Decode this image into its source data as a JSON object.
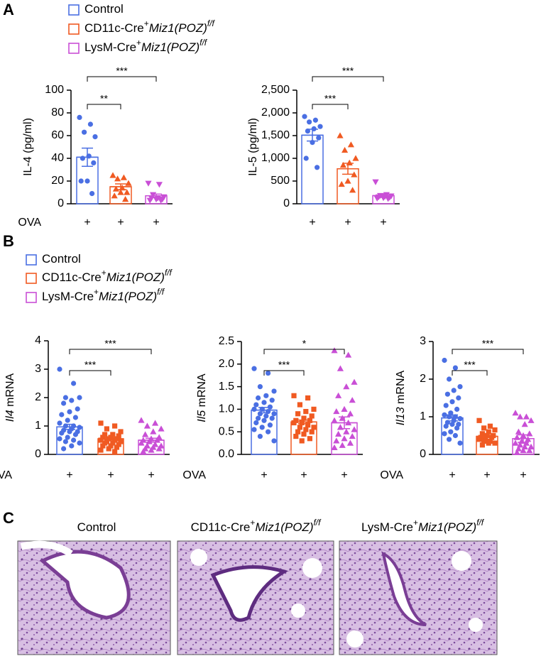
{
  "panels": {
    "A": "A",
    "B": "B",
    "C": "C"
  },
  "legends": {
    "A": [
      {
        "name": "Control",
        "color": "#4a6fe3"
      },
      {
        "name": "CD11c-Cre",
        "sup": "+",
        "italic": "Miz1(POZ)",
        "sup2": "f/f",
        "color": "#f05a22"
      },
      {
        "name": "LysM-Cre",
        "sup": "+",
        "italic": "Miz1(POZ)",
        "sup2": "f/f",
        "color": "#c94fd6"
      }
    ],
    "B": [
      {
        "name": "Control",
        "color": "#4a6fe3"
      },
      {
        "name": "CD11c-Cre",
        "sup": "+",
        "italic": "Miz1(POZ)",
        "sup2": "f/f",
        "color": "#f05a22"
      },
      {
        "name": "LysM-Cre",
        "sup": "+",
        "italic": "Miz1(POZ)",
        "sup2": "f/f",
        "color": "#c94fd6"
      }
    ]
  },
  "images": [
    {
      "name": "Control"
    },
    {
      "name": "CD11c-Cre",
      "sup": "+",
      "italic": "Miz1(POZ)",
      "sup2": "f/f"
    },
    {
      "name": "LysM-Cre",
      "sup": "+",
      "italic": "Miz1(POZ)",
      "sup2": "f/f"
    }
  ],
  "chart_data": [
    {
      "type": "bar",
      "y_label": "IL-4 (pg/ml)",
      "x_row_label": "OVA",
      "categories": [
        "+",
        "+",
        "+"
      ],
      "values": [
        41,
        15,
        7
      ],
      "errors": [
        8,
        2.5,
        1.5
      ],
      "colors": [
        "#4a6fe3",
        "#f05a22",
        "#c94fd6"
      ],
      "markers": [
        "circle",
        "triangle",
        "triangle-down"
      ],
      "points": [
        [
          76,
          70,
          63,
          59,
          42,
          40,
          36,
          20,
          20,
          9
        ],
        [
          25,
          23,
          22,
          18,
          14,
          13,
          10,
          10,
          7,
          4
        ],
        [
          18,
          17,
          8,
          6,
          5,
          5,
          4,
          4,
          3,
          3
        ]
      ],
      "annotations": [
        {
          "text": "**"
        },
        {
          "text": "***"
        }
      ],
      "ylim": [
        0,
        100
      ],
      "yticks": [
        0,
        20,
        40,
        60,
        80,
        100
      ]
    },
    {
      "type": "bar",
      "y_label": "IL-5 (pg/ml)",
      "x_row_label": null,
      "categories": [
        "+",
        "+",
        "+"
      ],
      "values": [
        1510,
        770,
        180
      ],
      "errors": [
        130,
        120,
        40
      ],
      "colors": [
        "#4a6fe3",
        "#f05a22",
        "#c94fd6"
      ],
      "markers": [
        "circle",
        "triangle",
        "triangle-down"
      ],
      "points": [
        [
          1920,
          1840,
          1800,
          1700,
          1650,
          1600,
          1450,
          1350,
          1000,
          800
        ],
        [
          1500,
          1300,
          1180,
          1000,
          900,
          850,
          640,
          500,
          430,
          300
        ],
        [
          480,
          200,
          180,
          170,
          160,
          150,
          140,
          130,
          120,
          110
        ]
      ],
      "annotations": [
        {
          "text": "***"
        },
        {
          "text": "***"
        }
      ],
      "ylim": [
        0,
        2500
      ],
      "yticks": [
        0,
        500,
        {
          "value": 1000,
          "label": "1,000"
        },
        {
          "value": 1500,
          "label": "1,500"
        },
        {
          "value": 2000,
          "label": "2,000"
        },
        {
          "value": 2500,
          "label": "2,500"
        }
      ]
    },
    {
      "type": "bar",
      "y_label_italic": "Il4",
      "y_label": "mRNA",
      "x_row_label": "OVA",
      "categories": [
        "+",
        "+",
        "+"
      ],
      "values": [
        0.97,
        0.55,
        0.5
      ],
      "errors": [
        0.09,
        0.04,
        0.07
      ],
      "colors": [
        "#4a6fe3",
        "#f05a22",
        "#c94fd6"
      ],
      "markers": [
        "circle",
        "square",
        "triangle"
      ],
      "points": [
        [
          3.0,
          2.5,
          2.0,
          2.0,
          1.9,
          1.8,
          1.6,
          1.5,
          1.4,
          1.3,
          1.2,
          1.1,
          1.0,
          1.0,
          0.95,
          0.9,
          0.85,
          0.8,
          0.8,
          0.75,
          0.7,
          0.6,
          0.55,
          0.5,
          0.45,
          0.4,
          0.3,
          0.2
        ],
        [
          1.1,
          1.0,
          0.9,
          0.8,
          0.7,
          0.7,
          0.65,
          0.6,
          0.6,
          0.55,
          0.55,
          0.5,
          0.5,
          0.45,
          0.45,
          0.4,
          0.4,
          0.35,
          0.3,
          0.3,
          0.25,
          0.2,
          0.15,
          0.1
        ],
        [
          1.2,
          1.1,
          1.0,
          0.9,
          0.8,
          0.7,
          0.6,
          0.55,
          0.5,
          0.5,
          0.45,
          0.4,
          0.35,
          0.3,
          0.3,
          0.25,
          0.2,
          0.2,
          0.15,
          0.1
        ]
      ],
      "annotations": [
        {
          "text": "***"
        },
        {
          "text": "***"
        }
      ],
      "ylim": [
        0,
        4
      ],
      "yticks": [
        0,
        1,
        2,
        3,
        4
      ]
    },
    {
      "type": "bar",
      "y_label_italic": "Il5",
      "y_label": "mRNA",
      "x_row_label": "OVA",
      "categories": [
        "+",
        "+",
        "+"
      ],
      "values": [
        0.98,
        0.72,
        0.7
      ],
      "errors": [
        0.06,
        0.04,
        0.13
      ],
      "colors": [
        "#4a6fe3",
        "#f05a22",
        "#c94fd6"
      ],
      "markers": [
        "circle",
        "square",
        "triangle"
      ],
      "points": [
        [
          1.9,
          1.8,
          1.5,
          1.4,
          1.3,
          1.25,
          1.2,
          1.15,
          1.1,
          1.05,
          1.0,
          1.0,
          0.95,
          0.9,
          0.9,
          0.85,
          0.8,
          0.8,
          0.75,
          0.7,
          0.65,
          0.6,
          0.55,
          0.5,
          0.4,
          0.3
        ],
        [
          1.3,
          1.25,
          1.1,
          1.0,
          0.95,
          0.9,
          0.85,
          0.8,
          0.75,
          0.75,
          0.7,
          0.7,
          0.65,
          0.6,
          0.6,
          0.55,
          0.5,
          0.5,
          0.45,
          0.4,
          0.35,
          0.3
        ],
        [
          2.3,
          2.2,
          1.9,
          1.6,
          1.5,
          1.3,
          1.2,
          1.0,
          0.95,
          0.9,
          0.8,
          0.75,
          0.7,
          0.6,
          0.55,
          0.5,
          0.45,
          0.4,
          0.35,
          0.3,
          0.25,
          0.2,
          0.15
        ]
      ],
      "annotations": [
        {
          "text": "***"
        },
        {
          "text": "*"
        }
      ],
      "ylim": [
        0,
        2.5
      ],
      "yticks": [
        {
          "value": 0,
          "label": "0.0"
        },
        0.5,
        {
          "value": 1,
          "label": "1.0"
        },
        1.5,
        {
          "value": 2,
          "label": "2.0"
        },
        2.5
      ]
    },
    {
      "type": "bar",
      "y_label_italic": "Il13",
      "y_label": "mRNA",
      "x_row_label": "OVA",
      "categories": [
        "+",
        "+",
        "+"
      ],
      "values": [
        0.97,
        0.48,
        0.42
      ],
      "errors": [
        0.08,
        0.03,
        0.1
      ],
      "colors": [
        "#4a6fe3",
        "#f05a22",
        "#c94fd6"
      ],
      "markers": [
        "circle",
        "square",
        "triangle"
      ],
      "points": [
        [
          2.5,
          2.3,
          2.0,
          1.8,
          1.7,
          1.6,
          1.5,
          1.4,
          1.3,
          1.2,
          1.1,
          1.05,
          1.0,
          1.0,
          0.95,
          0.9,
          0.85,
          0.8,
          0.8,
          0.75,
          0.7,
          0.6,
          0.55,
          0.5,
          0.4,
          0.3
        ],
        [
          0.9,
          0.75,
          0.7,
          0.65,
          0.6,
          0.55,
          0.5,
          0.5,
          0.45,
          0.45,
          0.4,
          0.4,
          0.35,
          0.35,
          0.3,
          0.3,
          0.25
        ],
        [
          1.1,
          1.0,
          1.0,
          0.9,
          0.8,
          0.6,
          0.55,
          0.5,
          0.45,
          0.4,
          0.35,
          0.3,
          0.3,
          0.25,
          0.2,
          0.2,
          0.15,
          0.1,
          0.1,
          0.05
        ]
      ],
      "annotations": [
        {
          "text": "***"
        },
        {
          "text": "***"
        }
      ],
      "ylim": [
        0,
        3
      ],
      "yticks": [
        0,
        1,
        2,
        3
      ]
    }
  ]
}
